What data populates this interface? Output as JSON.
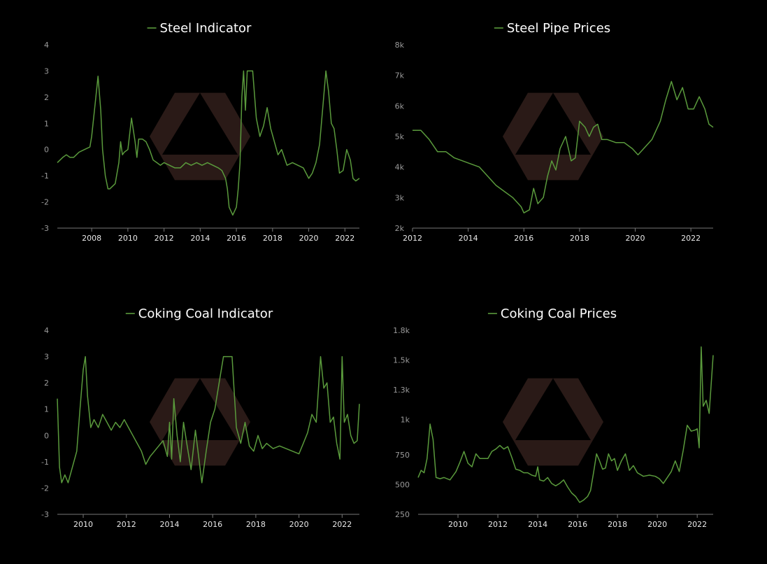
{
  "colors": {
    "background": "#000000",
    "line": "#5a9a3c",
    "axis": "#777777",
    "watermark": "#2a1a17"
  },
  "chart_data": [
    {
      "type": "line",
      "title": "Steel Indicator",
      "series": [
        {
          "name": "Steel Indicator"
        }
      ],
      "xlim": [
        2006.1,
        2022.8
      ],
      "ylim": [
        -3,
        4
      ],
      "yticks": [
        4,
        3,
        2,
        1,
        0,
        -1,
        -2,
        -3
      ],
      "ytick_labels": [
        "4",
        "3",
        "2",
        "1",
        "0",
        "-1",
        "-2",
        "-3"
      ],
      "xticks": [
        2008,
        2010,
        2012,
        2014,
        2016,
        2018,
        2020,
        2022
      ],
      "xtick_labels": [
        "2008",
        "2010",
        "2012",
        "2014",
        "2016",
        "2018",
        "2020",
        "2022"
      ],
      "x": [
        2006.1,
        2006.4,
        2006.6,
        2006.8,
        2007.0,
        2007.3,
        2007.6,
        2007.9,
        2008.0,
        2008.2,
        2008.35,
        2008.5,
        2008.6,
        2008.75,
        2008.9,
        2009.0,
        2009.3,
        2009.5,
        2009.6,
        2009.7,
        2009.8,
        2010.0,
        2010.2,
        2010.4,
        2010.5,
        2010.6,
        2010.8,
        2011.0,
        2011.2,
        2011.4,
        2011.6,
        2011.8,
        2012.0,
        2012.3,
        2012.6,
        2012.9,
        2013.2,
        2013.5,
        2013.8,
        2014.1,
        2014.4,
        2014.7,
        2015.0,
        2015.2,
        2015.4,
        2015.5,
        2015.6,
        2015.8,
        2016.0,
        2016.1,
        2016.2,
        2016.3,
        2016.4,
        2016.5,
        2016.6,
        2016.7,
        2016.9,
        2017.1,
        2017.3,
        2017.5,
        2017.7,
        2017.9,
        2018.1,
        2018.3,
        2018.5,
        2018.8,
        2019.1,
        2019.4,
        2019.7,
        2020.0,
        2020.2,
        2020.4,
        2020.6,
        2020.8,
        2020.95,
        2021.1,
        2021.25,
        2021.4,
        2021.55,
        2021.7,
        2021.9,
        2022.1,
        2022.3,
        2022.45,
        2022.6,
        2022.8
      ],
      "y": [
        -0.5,
        -0.3,
        -0.2,
        -0.3,
        -0.3,
        -0.1,
        0.0,
        0.1,
        0.5,
        1.8,
        2.8,
        1.5,
        0.0,
        -1.0,
        -1.5,
        -1.5,
        -1.3,
        -0.5,
        0.3,
        -0.2,
        -0.1,
        0.0,
        1.2,
        0.3,
        -0.3,
        0.4,
        0.4,
        0.3,
        0.0,
        -0.4,
        -0.5,
        -0.6,
        -0.5,
        -0.6,
        -0.7,
        -0.7,
        -0.5,
        -0.6,
        -0.5,
        -0.6,
        -0.5,
        -0.6,
        -0.7,
        -0.8,
        -1.1,
        -1.5,
        -2.2,
        -2.5,
        -2.2,
        -1.5,
        -0.5,
        2.0,
        3.0,
        1.5,
        3.0,
        3.0,
        3.0,
        1.2,
        0.5,
        0.9,
        1.6,
        0.8,
        0.3,
        -0.2,
        0.0,
        -0.6,
        -0.5,
        -0.6,
        -0.7,
        -1.1,
        -0.9,
        -0.5,
        0.2,
        1.8,
        3.0,
        2.2,
        1.0,
        0.8,
        0.0,
        -0.9,
        -0.8,
        0.0,
        -0.4,
        -1.1,
        -1.2,
        -1.1
      ]
    },
    {
      "type": "line",
      "title": "Steel Pipe Prices",
      "series": [
        {
          "name": "Steel Pipe Prices"
        }
      ],
      "xlim": [
        2012.0,
        2022.8
      ],
      "ylim": [
        2000,
        8000
      ],
      "yticks": [
        8000,
        7000,
        6000,
        5000,
        4000,
        3000,
        2000
      ],
      "ytick_labels": [
        "8k",
        "7k",
        "6k",
        "5k",
        "4k",
        "3k",
        "2k"
      ],
      "xticks": [
        2012,
        2014,
        2016,
        2018,
        2020,
        2022
      ],
      "xtick_labels": [
        "2012",
        "2014",
        "2016",
        "2018",
        "2020",
        "2022"
      ],
      "x": [
        2012.0,
        2012.3,
        2012.6,
        2012.9,
        2013.2,
        2013.5,
        2013.8,
        2014.1,
        2014.4,
        2014.7,
        2015.0,
        2015.3,
        2015.6,
        2015.9,
        2016.0,
        2016.2,
        2016.35,
        2016.5,
        2016.7,
        2016.85,
        2017.0,
        2017.15,
        2017.3,
        2017.5,
        2017.7,
        2017.85,
        2018.0,
        2018.2,
        2018.35,
        2018.5,
        2018.65,
        2018.8,
        2019.0,
        2019.3,
        2019.6,
        2019.9,
        2020.1,
        2020.3,
        2020.6,
        2020.9,
        2021.1,
        2021.3,
        2021.5,
        2021.7,
        2021.9,
        2022.1,
        2022.3,
        2022.5,
        2022.65,
        2022.8
      ],
      "y": [
        5200,
        5200,
        4900,
        4500,
        4500,
        4300,
        4200,
        4100,
        4000,
        3700,
        3400,
        3200,
        3000,
        2700,
        2500,
        2600,
        3300,
        2800,
        3000,
        3700,
        4200,
        3900,
        4600,
        5000,
        4200,
        4300,
        5500,
        5300,
        5000,
        5300,
        5400,
        4900,
        4900,
        4800,
        4800,
        4600,
        4400,
        4600,
        4900,
        5500,
        6200,
        6800,
        6200,
        6600,
        5900,
        5900,
        6300,
        5900,
        5400,
        5300
      ]
    },
    {
      "type": "line",
      "title": "Coking Coal Indicator",
      "series": [
        {
          "name": "Coking Coal Indicator"
        }
      ],
      "xlim": [
        2008.8,
        2022.8
      ],
      "ylim": [
        -3,
        4
      ],
      "yticks": [
        4,
        3,
        2,
        1,
        0,
        -1,
        -2,
        -3
      ],
      "ytick_labels": [
        "4",
        "3",
        "2",
        "1",
        "0",
        "-1",
        "-2",
        "-3"
      ],
      "xticks": [
        2010,
        2012,
        2014,
        2016,
        2018,
        2020,
        2022
      ],
      "xtick_labels": [
        "2010",
        "2012",
        "2014",
        "2016",
        "2018",
        "2020",
        "2022"
      ],
      "x": [
        2008.8,
        2008.9,
        2009.0,
        2009.15,
        2009.3,
        2009.5,
        2009.7,
        2009.85,
        2010.0,
        2010.1,
        2010.2,
        2010.35,
        2010.5,
        2010.7,
        2010.9,
        2011.1,
        2011.3,
        2011.5,
        2011.7,
        2011.9,
        2012.1,
        2012.3,
        2012.5,
        2012.7,
        2012.9,
        2013.1,
        2013.3,
        2013.5,
        2013.7,
        2013.9,
        2014.0,
        2014.1,
        2014.2,
        2014.35,
        2014.5,
        2014.65,
        2014.8,
        2015.0,
        2015.2,
        2015.35,
        2015.5,
        2015.7,
        2015.9,
        2016.1,
        2016.3,
        2016.5,
        2016.7,
        2016.9,
        2017.1,
        2017.3,
        2017.5,
        2017.7,
        2017.9,
        2018.1,
        2018.3,
        2018.5,
        2018.8,
        2019.1,
        2019.4,
        2019.7,
        2020.0,
        2020.2,
        2020.4,
        2020.6,
        2020.8,
        2021.0,
        2021.15,
        2021.3,
        2021.45,
        2021.6,
        2021.75,
        2021.9,
        2022.0,
        2022.1,
        2022.25,
        2022.4,
        2022.55,
        2022.7,
        2022.8
      ],
      "y": [
        1.4,
        -1.2,
        -1.8,
        -1.5,
        -1.8,
        -1.2,
        -0.6,
        1.0,
        2.5,
        3.0,
        1.5,
        0.3,
        0.6,
        0.3,
        0.8,
        0.5,
        0.2,
        0.5,
        0.3,
        0.6,
        0.3,
        0.0,
        -0.3,
        -0.6,
        -1.1,
        -0.8,
        -0.6,
        -0.4,
        -0.2,
        -0.8,
        0.5,
        -0.9,
        1.4,
        0.0,
        -1.0,
        0.5,
        -0.3,
        -1.3,
        0.2,
        -0.8,
        -1.8,
        -0.6,
        0.5,
        1.0,
        2.0,
        3.0,
        3.0,
        3.0,
        0.3,
        -0.3,
        0.5,
        -0.4,
        -0.6,
        0.0,
        -0.5,
        -0.3,
        -0.5,
        -0.4,
        -0.5,
        -0.6,
        -0.7,
        -0.3,
        0.1,
        0.8,
        0.5,
        3.0,
        1.8,
        2.0,
        0.5,
        0.7,
        -0.3,
        -0.9,
        3.0,
        0.5,
        0.8,
        0.0,
        -0.3,
        -0.2,
        1.2
      ]
    },
    {
      "type": "line",
      "title": "Coking Coal Prices",
      "series": [
        {
          "name": "Coking Coal Prices"
        }
      ],
      "xlim": [
        2008.0,
        2022.8
      ],
      "ylim": [
        250,
        1800
      ],
      "yticks": [
        1800,
        1550,
        1300,
        1050,
        750,
        500,
        250
      ],
      "ytick_labels": [
        "1.8k",
        "1.5k",
        "1.3k",
        "1k",
        "750",
        "500",
        "250"
      ],
      "xticks": [
        2010,
        2012,
        2014,
        2016,
        2018,
        2020,
        2022
      ],
      "xtick_labels": [
        "2010",
        "2012",
        "2014",
        "2016",
        "2018",
        "2020",
        "2022"
      ],
      "x": [
        2008.0,
        2008.15,
        2008.3,
        2008.45,
        2008.6,
        2008.75,
        2008.9,
        2009.1,
        2009.3,
        2009.6,
        2009.9,
        2010.1,
        2010.3,
        2010.5,
        2010.7,
        2010.9,
        2011.1,
        2011.3,
        2011.5,
        2011.7,
        2011.9,
        2012.1,
        2012.3,
        2012.5,
        2012.7,
        2012.9,
        2013.1,
        2013.3,
        2013.5,
        2013.7,
        2013.9,
        2014.0,
        2014.1,
        2014.3,
        2014.5,
        2014.7,
        2014.9,
        2015.1,
        2015.3,
        2015.5,
        2015.7,
        2015.9,
        2016.1,
        2016.3,
        2016.5,
        2016.65,
        2016.8,
        2016.95,
        2017.1,
        2017.25,
        2017.4,
        2017.55,
        2017.7,
        2017.85,
        2018.0,
        2018.2,
        2018.4,
        2018.6,
        2018.8,
        2019.0,
        2019.3,
        2019.6,
        2019.9,
        2020.1,
        2020.3,
        2020.5,
        2020.7,
        2020.9,
        2021.1,
        2021.3,
        2021.5,
        2021.7,
        2021.9,
        2022.0,
        2022.1,
        2022.2,
        2022.3,
        2022.45,
        2022.6,
        2022.8
      ],
      "y": [
        560,
        620,
        600,
        720,
        1010,
        880,
        560,
        550,
        560,
        540,
        610,
        690,
        780,
        680,
        650,
        760,
        720,
        720,
        720,
        780,
        800,
        830,
        800,
        820,
        730,
        630,
        620,
        600,
        600,
        580,
        570,
        650,
        540,
        530,
        560,
        510,
        490,
        510,
        540,
        480,
        430,
        400,
        350,
        370,
        400,
        450,
        600,
        760,
        700,
        630,
        640,
        760,
        700,
        720,
        620,
        700,
        760,
        620,
        660,
        600,
        570,
        580,
        570,
        550,
        510,
        560,
        610,
        700,
        610,
        790,
        1000,
        950,
        960,
        970,
        810,
        1660,
        1160,
        1210,
        1100,
        1590
      ]
    }
  ]
}
